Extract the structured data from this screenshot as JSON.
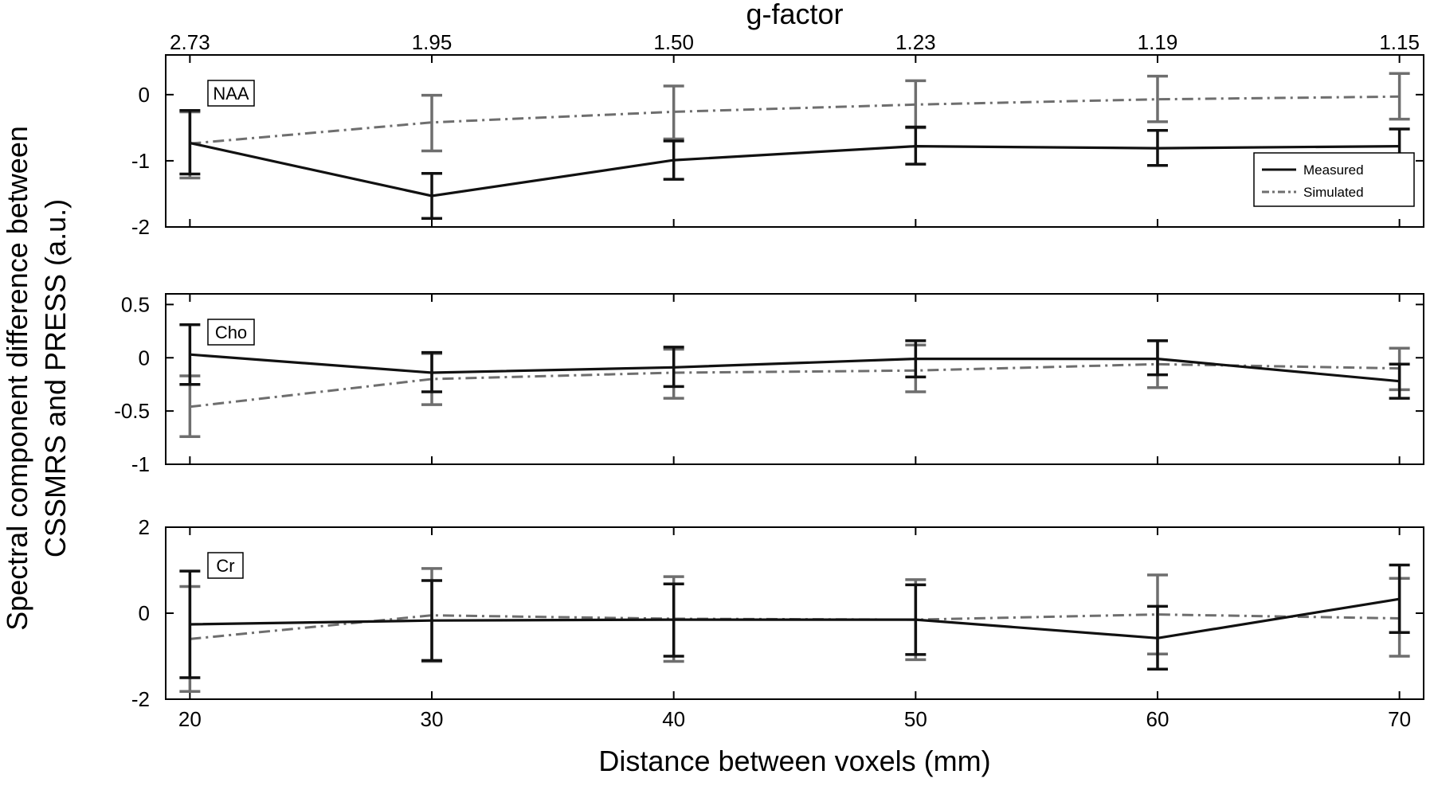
{
  "chart_data": {
    "type": "line",
    "shared_x": {
      "label": "Distance between voxels (mm)",
      "ticks": [
        20,
        30,
        40,
        50,
        60,
        70
      ],
      "range": [
        19,
        71
      ]
    },
    "top_axis": {
      "label": "g-factor",
      "tick_labels": [
        "2.73",
        "1.95",
        "1.50",
        "1.23",
        "1.19",
        "1.15"
      ]
    },
    "ylabel_line1": "Spectral component difference between",
    "ylabel_line2": "CSSMRS and PRESS (a.u.)",
    "legend": {
      "position": "bottom-right of top panel",
      "measured_label": "Measured",
      "simulated_label": "Simulated"
    },
    "colors": {
      "measured": "#111111",
      "simulated": "#6e6e6e"
    },
    "panels": [
      {
        "label": "NAA",
        "ylim": [
          -2,
          0.6
        ],
        "yticks": [
          0,
          -1,
          -2
        ],
        "x": [
          20,
          30,
          40,
          50,
          60,
          70
        ],
        "series": [
          {
            "name": "Measured",
            "values": [
              -0.73,
              -1.53,
              -0.99,
              -0.78,
              -0.81,
              -0.78
            ],
            "err_low": [
              -1.2,
              -1.87,
              -1.28,
              -1.05,
              -1.07,
              -1.03
            ],
            "err_high": [
              -0.24,
              -1.19,
              -0.7,
              -0.49,
              -0.54,
              -0.52
            ]
          },
          {
            "name": "Simulated",
            "values": [
              -0.74,
              -0.42,
              -0.26,
              -0.15,
              -0.07,
              -0.03
            ],
            "err_low": [
              -1.26,
              -0.85,
              -0.67,
              -0.5,
              -0.41,
              -0.37
            ],
            "err_high": [
              -0.26,
              -0.01,
              0.13,
              0.21,
              0.28,
              0.32
            ]
          }
        ]
      },
      {
        "label": "Cho",
        "ylim": [
          -1,
          0.6
        ],
        "yticks": [
          0.5,
          0,
          -0.5,
          -1
        ],
        "x": [
          20,
          30,
          40,
          50,
          60,
          70
        ],
        "series": [
          {
            "name": "Measured",
            "values": [
              0.03,
              -0.14,
              -0.09,
              -0.01,
              -0.01,
              -0.22
            ],
            "err_low": [
              -0.25,
              -0.32,
              -0.27,
              -0.18,
              -0.16,
              -0.38
            ],
            "err_high": [
              0.31,
              0.05,
              0.1,
              0.16,
              0.16,
              -0.06
            ]
          },
          {
            "name": "Simulated",
            "values": [
              -0.46,
              -0.2,
              -0.14,
              -0.12,
              -0.06,
              -0.1
            ],
            "err_low": [
              -0.74,
              -0.44,
              -0.38,
              -0.32,
              -0.28,
              -0.3
            ],
            "err_high": [
              -0.17,
              0.04,
              0.08,
              0.12,
              0.16,
              0.09
            ]
          }
        ]
      },
      {
        "label": "Cr",
        "ylim": [
          -2,
          2
        ],
        "yticks": [
          2,
          0,
          -2
        ],
        "x": [
          20,
          30,
          40,
          50,
          60,
          70
        ],
        "series": [
          {
            "name": "Measured",
            "values": [
              -0.26,
              -0.17,
              -0.15,
              -0.15,
              -0.58,
              0.33
            ],
            "err_low": [
              -1.5,
              -1.1,
              -1.0,
              -0.96,
              -1.3,
              -0.45
            ],
            "err_high": [
              0.98,
              0.76,
              0.68,
              0.66,
              0.16,
              1.12
            ]
          },
          {
            "name": "Simulated",
            "values": [
              -0.6,
              -0.05,
              -0.13,
              -0.15,
              -0.03,
              -0.12
            ],
            "err_low": [
              -1.82,
              -1.12,
              -1.12,
              -1.08,
              -0.95,
              -1.0
            ],
            "err_high": [
              0.62,
              1.04,
              0.85,
              0.78,
              0.89,
              0.81
            ]
          }
        ]
      }
    ]
  }
}
